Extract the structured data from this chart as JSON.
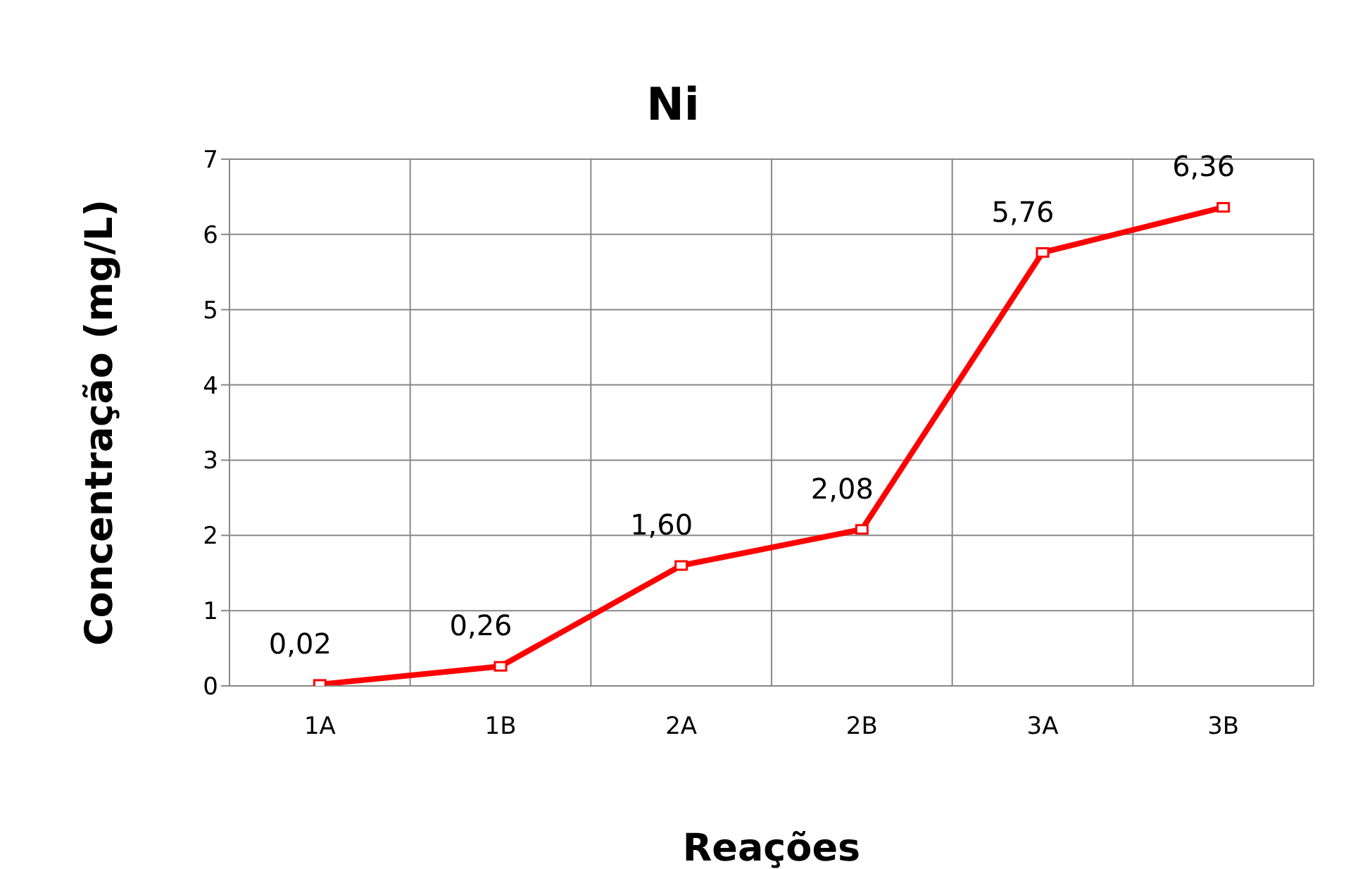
{
  "chart_data": {
    "type": "line",
    "title": "Ni",
    "xlabel": "Reações",
    "ylabel": "Concentração (mg/L)",
    "categories": [
      "1A",
      "1B",
      "2A",
      "2B",
      "3A",
      "3B"
    ],
    "series": [
      {
        "color": "#ff0000",
        "values": [
          0.02,
          0.26,
          1.6,
          2.08,
          5.76,
          6.36
        ]
      }
    ],
    "value_labels": [
      "0,02",
      "0,26",
      "1,60",
      "2,08",
      "5,76",
      "6,36"
    ],
    "ylim": [
      0,
      7
    ],
    "yticks": [
      0,
      1,
      2,
      3,
      4,
      5,
      6,
      7
    ],
    "grid": true,
    "marker": "square",
    "line_style": "solid",
    "legend": false
  }
}
